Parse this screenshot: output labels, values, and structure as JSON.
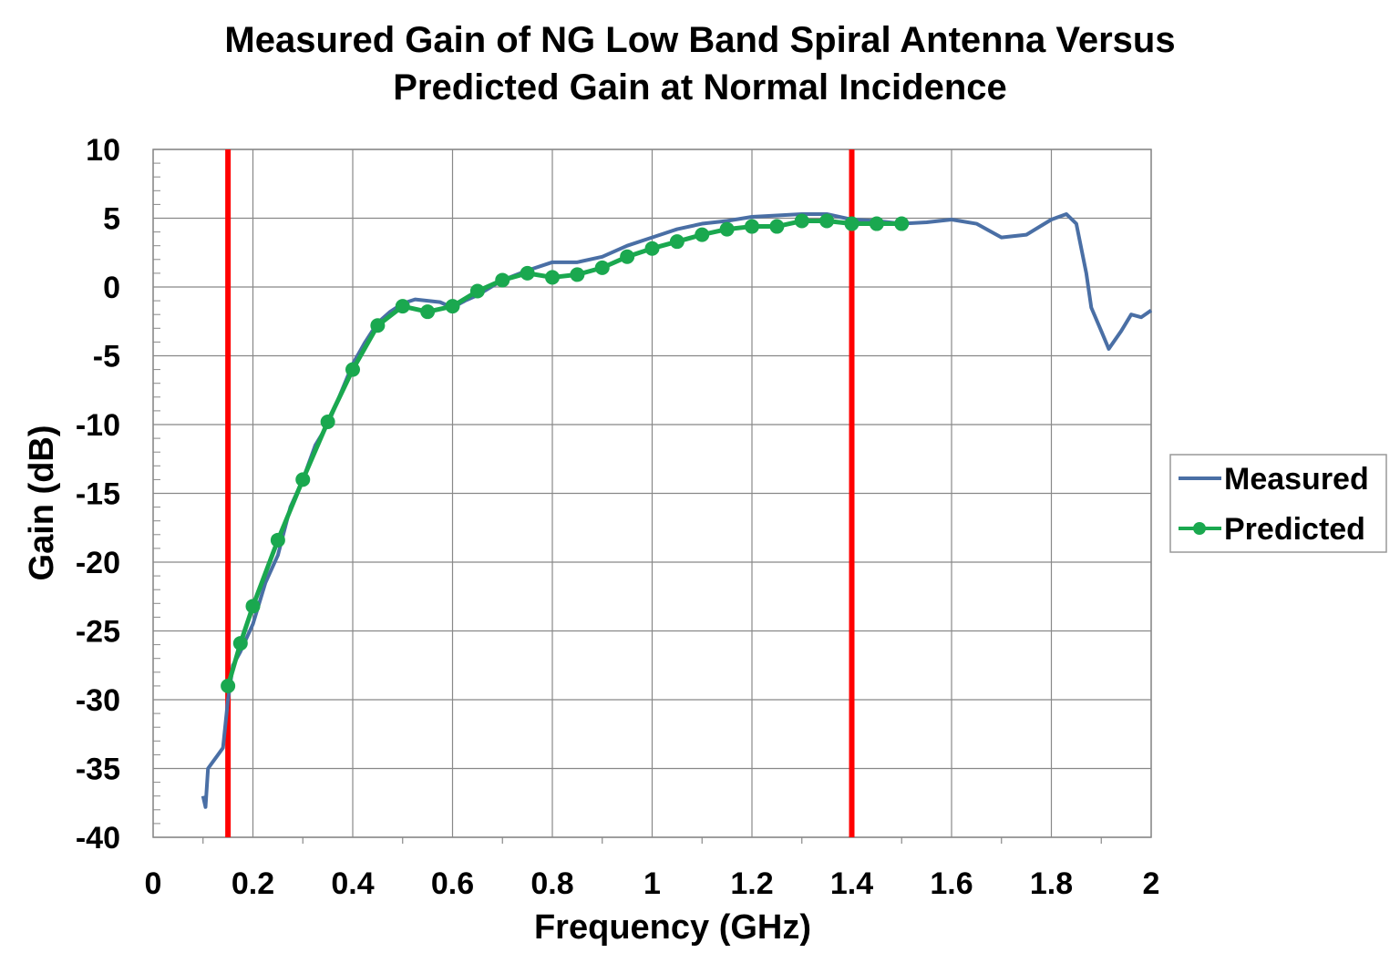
{
  "chart_data": {
    "type": "line",
    "title": [
      "Measured Gain of NG Low Band Spiral Antenna Versus",
      "Predicted Gain at Normal Incidence"
    ],
    "xlabel": "Frequency (GHz)",
    "ylabel": "Gain (dB)",
    "xlim": [
      0,
      2
    ],
    "ylim": [
      -40,
      10
    ],
    "xticks": [
      "0",
      "0.2",
      "0.4",
      "0.6",
      "0.8",
      "1",
      "1.2",
      "1.4",
      "1.6",
      "1.8",
      "2"
    ],
    "yticks": [
      "10",
      "5",
      "0",
      "-5",
      "-10",
      "-15",
      "-20",
      "-25",
      "-30",
      "-35",
      "-40"
    ],
    "grid": true,
    "legend_position": "right",
    "vertical_lines": {
      "x": [
        0.15,
        1.4
      ],
      "color": "#ff0000"
    },
    "series": [
      {
        "name": "Measured",
        "color": "#4a6fa5",
        "marker": "none",
        "x": [
          0.1,
          0.105,
          0.11,
          0.12,
          0.13,
          0.14,
          0.15,
          0.16,
          0.175,
          0.2,
          0.225,
          0.25,
          0.275,
          0.3,
          0.325,
          0.35,
          0.375,
          0.4,
          0.425,
          0.45,
          0.475,
          0.5,
          0.525,
          0.55,
          0.575,
          0.6,
          0.625,
          0.65,
          0.7,
          0.75,
          0.8,
          0.85,
          0.9,
          0.95,
          1.0,
          1.05,
          1.1,
          1.15,
          1.2,
          1.25,
          1.3,
          1.35,
          1.4,
          1.45,
          1.5,
          1.55,
          1.6,
          1.65,
          1.7,
          1.75,
          1.8,
          1.83,
          1.85,
          1.87,
          1.88,
          1.9,
          1.915,
          1.94,
          1.96,
          1.98,
          2.0
        ],
        "y": [
          -37,
          -37.8,
          -35,
          -34.5,
          -34,
          -33.5,
          -30,
          -27.5,
          -26.5,
          -24.5,
          -21.5,
          -19.5,
          -16,
          -14,
          -11.5,
          -10,
          -7.8,
          -5.6,
          -4,
          -2.6,
          -1.8,
          -1.2,
          -0.9,
          -1.0,
          -1.1,
          -1.5,
          -1.0,
          -0.6,
          0.5,
          1.2,
          1.8,
          1.8,
          2.2,
          3.0,
          3.6,
          4.2,
          4.6,
          4.8,
          5.1,
          5.2,
          5.3,
          5.3,
          4.9,
          4.8,
          4.6,
          4.7,
          4.9,
          4.6,
          3.6,
          3.8,
          4.9,
          5.3,
          4.6,
          1.0,
          -1.5,
          -3.2,
          -4.5,
          -3.2,
          -2.0,
          -2.2,
          -1.7
        ]
      },
      {
        "name": "Predicted",
        "color": "#1aa84f",
        "marker": "circle",
        "x": [
          0.15,
          0.175,
          0.2,
          0.25,
          0.3,
          0.35,
          0.4,
          0.45,
          0.5,
          0.55,
          0.6,
          0.65,
          0.7,
          0.75,
          0.8,
          0.85,
          0.9,
          0.95,
          1.0,
          1.05,
          1.1,
          1.15,
          1.2,
          1.25,
          1.3,
          1.35,
          1.4,
          1.45,
          1.5
        ],
        "y": [
          -29,
          -25.9,
          -23.2,
          -18.4,
          -14.0,
          -9.8,
          -6.0,
          -2.8,
          -1.4,
          -1.8,
          -1.4,
          -0.3,
          0.5,
          1.0,
          0.7,
          0.9,
          1.4,
          2.2,
          2.8,
          3.3,
          3.8,
          4.2,
          4.4,
          4.4,
          4.8,
          4.8,
          4.6,
          4.6,
          4.6
        ]
      }
    ]
  }
}
